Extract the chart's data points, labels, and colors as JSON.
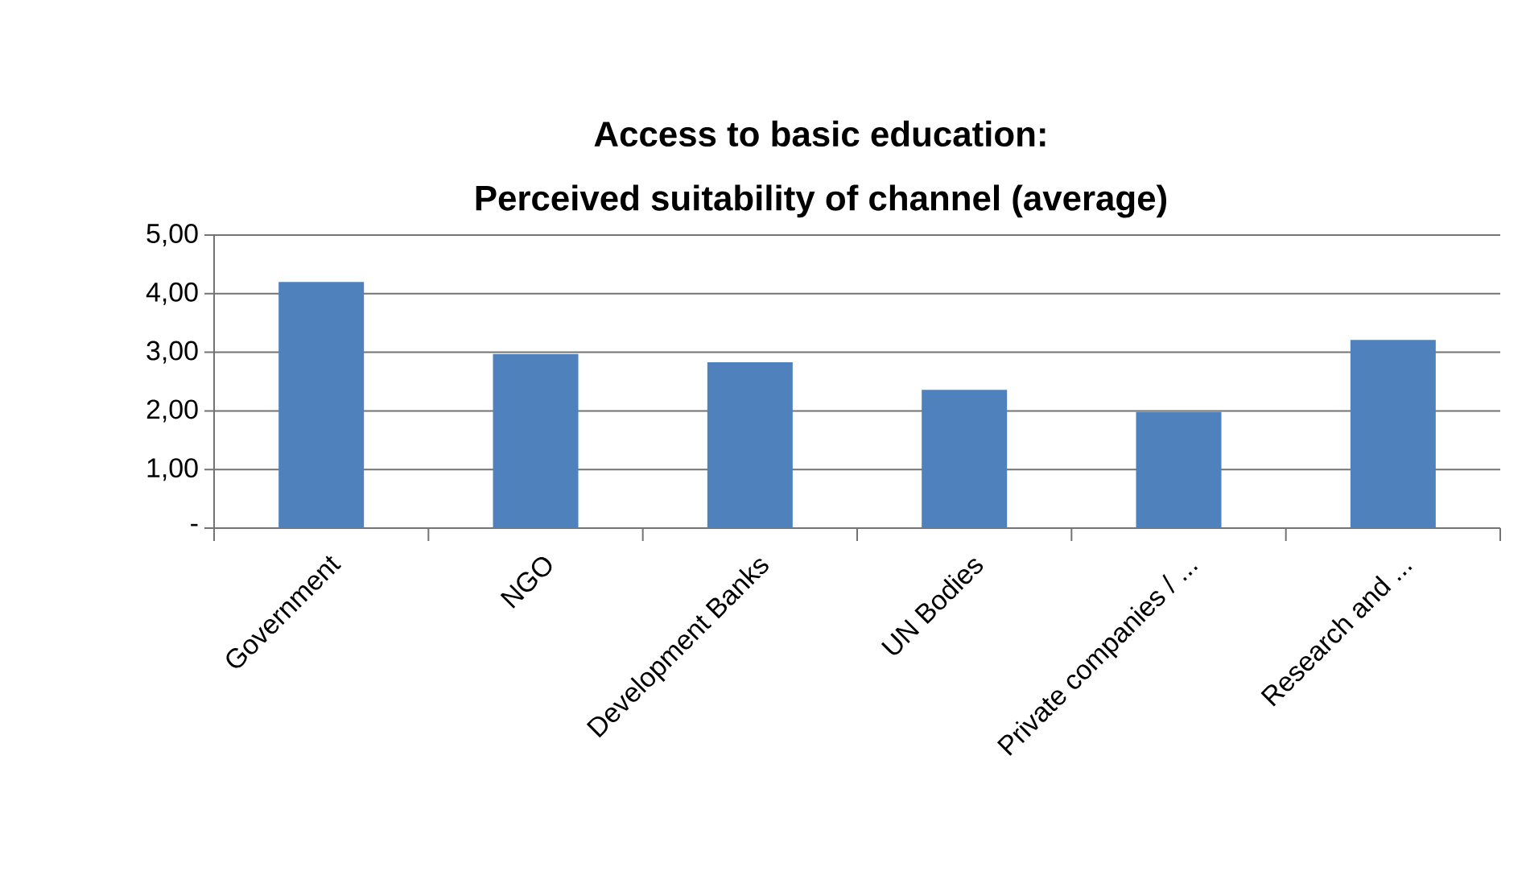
{
  "chart_data": {
    "type": "bar",
    "title": "Access to basic education:",
    "subtitle": "Perceived suitability of channel  (average)",
    "categories": [
      "Government",
      "NGO",
      "Development Banks",
      "UN Bodies",
      "Private companies / ...",
      "Research and ..."
    ],
    "values": [
      4.2,
      2.97,
      2.83,
      2.36,
      1.98,
      3.21
    ],
    "color": "#4f81bd",
    "ylim": [
      0,
      5
    ],
    "yticks": [
      {
        "value": 0,
        "label": "-"
      },
      {
        "value": 1,
        "label": "1,00"
      },
      {
        "value": 2,
        "label": "2,00"
      },
      {
        "value": 3,
        "label": "3,00"
      },
      {
        "value": 4,
        "label": "4,00"
      },
      {
        "value": 5,
        "label": "5,00"
      }
    ],
    "grid": "y"
  }
}
